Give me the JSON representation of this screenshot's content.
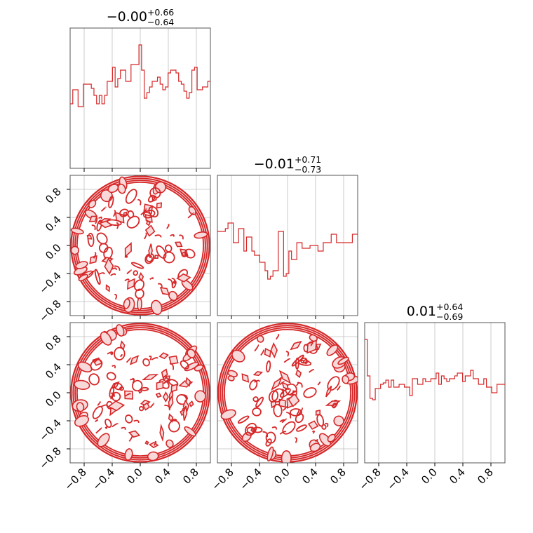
{
  "color": "#d62728",
  "chart_data": [
    {
      "panel": "hist-param-1",
      "type": "bar",
      "title": {
        "value": "−0.00",
        "plus": "+0.66",
        "minus": "−0.64"
      },
      "x_range": [
        -1,
        1
      ],
      "grid": true,
      "values": [
        0.46,
        0.56,
        0.56,
        0.44,
        0.44,
        0.6,
        0.6,
        0.6,
        0.57,
        0.52,
        0.46,
        0.52,
        0.46,
        0.52,
        0.62,
        0.62,
        0.72,
        0.58,
        0.64,
        0.7,
        0.7,
        0.62,
        0.62,
        0.74,
        0.74,
        0.74,
        0.88,
        0.7,
        0.5,
        0.54,
        0.58,
        0.62,
        0.62,
        0.65,
        0.6,
        0.56,
        0.58,
        0.68,
        0.7,
        0.7,
        0.68,
        0.62,
        0.6,
        0.55,
        0.5,
        0.54,
        0.7,
        0.72,
        0.56,
        0.56,
        0.58,
        0.58,
        0.62
      ]
    },
    {
      "panel": "hist-param-2",
      "type": "bar",
      "title": {
        "value": "−0.01",
        "plus": "+0.71",
        "minus": "−0.73"
      },
      "x_range": [
        -1,
        1
      ],
      "grid": true,
      "values": [
        0.6,
        0.6,
        0.6,
        0.62,
        0.66,
        0.66,
        0.52,
        0.52,
        0.62,
        0.62,
        0.46,
        0.56,
        0.56,
        0.46,
        0.43,
        0.43,
        0.38,
        0.38,
        0.32,
        0.26,
        0.28,
        0.32,
        0.32,
        0.6,
        0.6,
        0.28,
        0.3,
        0.46,
        0.4,
        0.4,
        0.52,
        0.52,
        0.48,
        0.48,
        0.48,
        0.5,
        0.5,
        0.5,
        0.46,
        0.46,
        0.52,
        0.52,
        0.52,
        0.58,
        0.58,
        0.52,
        0.52,
        0.52,
        0.52,
        0.52,
        0.52,
        0.58,
        0.58
      ]
    },
    {
      "panel": "hist-param-3",
      "type": "bar",
      "title": {
        "value": "0.01",
        "plus": "+0.64",
        "minus": "−0.69"
      },
      "x_range": [
        -1,
        1
      ],
      "grid": true,
      "values": [
        0.88,
        0.62,
        0.46,
        0.45,
        0.53,
        0.53,
        0.56,
        0.57,
        0.59,
        0.54,
        0.59,
        0.54,
        0.54,
        0.56,
        0.56,
        0.54,
        0.54,
        0.48,
        0.6,
        0.6,
        0.56,
        0.56,
        0.6,
        0.58,
        0.58,
        0.6,
        0.6,
        0.64,
        0.56,
        0.62,
        0.6,
        0.58,
        0.6,
        0.6,
        0.62,
        0.64,
        0.64,
        0.58,
        0.62,
        0.62,
        0.66,
        0.6,
        0.6,
        0.56,
        0.56,
        0.6,
        0.54,
        0.54,
        0.5,
        0.5,
        0.56,
        0.56,
        0.56
      ]
    },
    {
      "panel": "contour-param-1-vs-2",
      "type": "scatter",
      "distribution": "uniform disc",
      "x_range": [
        -1,
        1
      ],
      "y_range": [
        -1,
        1
      ],
      "grid": true
    },
    {
      "panel": "contour-param-1-vs-3",
      "type": "scatter",
      "distribution": "uniform disc",
      "x_range": [
        -1,
        1
      ],
      "y_range": [
        -1,
        1
      ],
      "grid": true
    },
    {
      "panel": "contour-param-2-vs-3",
      "type": "scatter",
      "distribution": "uniform disc",
      "x_range": [
        -1,
        1
      ],
      "y_range": [
        -1,
        1
      ],
      "grid": true
    }
  ],
  "ticks": {
    "values": [
      -0.8,
      -0.4,
      0.0,
      0.4,
      0.8
    ],
    "labels": [
      "−0.8",
      "−0.4",
      "0.0",
      "0.4",
      "0.8"
    ]
  }
}
